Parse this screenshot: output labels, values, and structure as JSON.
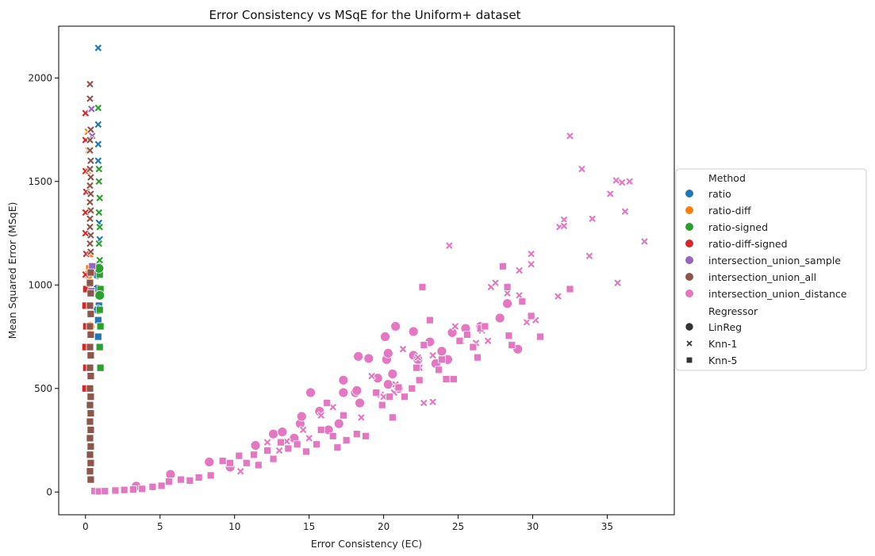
{
  "chart_data": {
    "type": "scatter",
    "title": "Error Consistency vs MSqE for the Uniform+ dataset",
    "xlabel": "Error Consistency (EC)",
    "ylabel": "Mean Squared Error (MSqE)",
    "xlim": [
      -1.8,
      39.5
    ],
    "ylim": [
      -110,
      2250
    ],
    "xticks": [
      0,
      5,
      10,
      15,
      20,
      25,
      30,
      35
    ],
    "yticks": [
      0,
      500,
      1000,
      1500,
      2000
    ],
    "grid": false,
    "legend_position": "center-right",
    "legend": {
      "hue_title": "Method",
      "style_title": "Regressor"
    },
    "methods": [
      {
        "name": "ratio",
        "color": "#1f77b4"
      },
      {
        "name": "ratio-diff",
        "color": "#ff7f0e"
      },
      {
        "name": "ratio-signed",
        "color": "#2ca02c"
      },
      {
        "name": "ratio-diff-signed",
        "color": "#d62728"
      },
      {
        "name": "intersection_union_sample",
        "color": "#9467bd"
      },
      {
        "name": "intersection_union_all",
        "color": "#8c564b"
      },
      {
        "name": "intersection_union_distance",
        "color": "#e377c2"
      }
    ],
    "regressors": [
      {
        "name": "LinReg",
        "marker": "circle"
      },
      {
        "name": "Knn-1",
        "marker": "x"
      },
      {
        "name": "Knn-5",
        "marker": "square"
      }
    ],
    "series": [
      {
        "method": "ratio",
        "regressor": "Knn-1",
        "points": [
          [
            0.85,
            2145
          ],
          [
            0.85,
            1775
          ],
          [
            0.85,
            1680
          ],
          [
            0.85,
            1600
          ],
          [
            0.9,
            1420
          ],
          [
            0.9,
            1300
          ],
          [
            0.95,
            1220
          ]
        ]
      },
      {
        "method": "ratio",
        "regressor": "Knn-5",
        "points": [
          [
            0.9,
            1090
          ],
          [
            0.9,
            980
          ],
          [
            0.9,
            900
          ],
          [
            0.85,
            830
          ],
          [
            0.85,
            750
          ]
        ]
      },
      {
        "method": "ratio",
        "regressor": "LinReg",
        "points": [
          [
            0.8,
            1050
          ],
          [
            0.8,
            980
          ],
          [
            0.85,
            880
          ]
        ]
      },
      {
        "method": "ratio-diff",
        "regressor": "Knn-5",
        "points": [
          [
            0.3,
            1150
          ],
          [
            0.25,
            1080
          ],
          [
            0.2,
            980
          ],
          [
            0.25,
            900
          ]
        ]
      },
      {
        "method": "ratio-diff",
        "regressor": "Knn-1",
        "points": [
          [
            0.15,
            1740
          ],
          [
            0.2,
            1650
          ],
          [
            0.15,
            1550
          ]
        ]
      },
      {
        "method": "ratio-diff",
        "regressor": "LinReg",
        "points": [
          [
            0.2,
            1050
          ],
          [
            0.3,
            800
          ]
        ]
      },
      {
        "method": "ratio-signed",
        "regressor": "Knn-1",
        "points": [
          [
            0.85,
            1855
          ],
          [
            0.9,
            1560
          ],
          [
            0.9,
            1500
          ],
          [
            0.95,
            1420
          ],
          [
            0.9,
            1350
          ],
          [
            0.95,
            1280
          ],
          [
            0.9,
            1200
          ],
          [
            0.95,
            1120
          ]
        ]
      },
      {
        "method": "ratio-signed",
        "regressor": "Knn-5",
        "points": [
          [
            0.95,
            1050
          ],
          [
            1.0,
            980
          ],
          [
            0.95,
            880
          ],
          [
            1.0,
            800
          ],
          [
            0.95,
            700
          ],
          [
            1.0,
            600
          ]
        ]
      },
      {
        "method": "ratio-signed",
        "regressor": "LinReg",
        "points": [
          [
            0.9,
            1080
          ],
          [
            0.95,
            950
          ]
        ]
      },
      {
        "method": "ratio-diff-signed",
        "regressor": "Knn-1",
        "points": [
          [
            0.0,
            1830
          ],
          [
            0.0,
            1700
          ],
          [
            0.0,
            1550
          ],
          [
            0.05,
            1450
          ],
          [
            0.0,
            1350
          ],
          [
            0.0,
            1250
          ],
          [
            0.05,
            1150
          ],
          [
            0.0,
            1050
          ]
        ]
      },
      {
        "method": "ratio-diff-signed",
        "regressor": "Knn-5",
        "points": [
          [
            0.05,
            980
          ],
          [
            0.0,
            900
          ],
          [
            0.05,
            800
          ],
          [
            0.0,
            700
          ],
          [
            0.05,
            600
          ],
          [
            0.0,
            500
          ]
        ]
      },
      {
        "method": "intersection_union_sample",
        "regressor": "Knn-1",
        "points": [
          [
            0.4,
            1850
          ],
          [
            0.45,
            1720
          ]
        ]
      },
      {
        "method": "intersection_union_sample",
        "regressor": "Knn-5",
        "points": [
          [
            0.45,
            1090
          ],
          [
            0.4,
            970
          ]
        ]
      },
      {
        "method": "intersection_union_all",
        "regressor": "Knn-1",
        "points": [
          [
            0.3,
            1970
          ],
          [
            0.3,
            1900
          ],
          [
            0.35,
            1750
          ],
          [
            0.3,
            1700
          ],
          [
            0.3,
            1650
          ],
          [
            0.35,
            1600
          ],
          [
            0.3,
            1560
          ],
          [
            0.35,
            1520
          ],
          [
            0.3,
            1480
          ],
          [
            0.35,
            1440
          ],
          [
            0.3,
            1400
          ],
          [
            0.35,
            1360
          ],
          [
            0.3,
            1320
          ],
          [
            0.3,
            1280
          ],
          [
            0.35,
            1240
          ],
          [
            0.3,
            1200
          ],
          [
            0.35,
            1160
          ]
        ]
      },
      {
        "method": "intersection_union_all",
        "regressor": "Knn-5",
        "points": [
          [
            0.35,
            1060
          ],
          [
            0.3,
            1010
          ],
          [
            0.35,
            960
          ],
          [
            0.3,
            900
          ],
          [
            0.35,
            860
          ],
          [
            0.3,
            800
          ],
          [
            0.35,
            760
          ],
          [
            0.3,
            700
          ],
          [
            0.35,
            660
          ],
          [
            0.3,
            600
          ],
          [
            0.35,
            560
          ],
          [
            0.3,
            500
          ],
          [
            0.35,
            460
          ],
          [
            0.3,
            420
          ],
          [
            0.35,
            380
          ],
          [
            0.3,
            340
          ],
          [
            0.35,
            300
          ],
          [
            0.3,
            260
          ],
          [
            0.35,
            220
          ],
          [
            0.3,
            180
          ],
          [
            0.35,
            140
          ],
          [
            0.3,
            100
          ],
          [
            0.35,
            60
          ]
        ]
      },
      {
        "method": "intersection_union_distance",
        "regressor": "LinReg",
        "points": [
          [
            3.4,
            28
          ],
          [
            5.7,
            85
          ],
          [
            8.3,
            145
          ],
          [
            9.7,
            120
          ],
          [
            11.4,
            225
          ],
          [
            12.6,
            280
          ],
          [
            13.2,
            290
          ],
          [
            14.0,
            260
          ],
          [
            14.4,
            330
          ],
          [
            14.5,
            365
          ],
          [
            15.1,
            480
          ],
          [
            15.7,
            390
          ],
          [
            16.3,
            300
          ],
          [
            17.0,
            330
          ],
          [
            17.3,
            540
          ],
          [
            17.3,
            480
          ],
          [
            18.1,
            480
          ],
          [
            18.2,
            490
          ],
          [
            18.4,
            430
          ],
          [
            18.3,
            655
          ],
          [
            19.0,
            645
          ],
          [
            19.6,
            550
          ],
          [
            20.1,
            750
          ],
          [
            20.2,
            640
          ],
          [
            20.3,
            670
          ],
          [
            20.3,
            520
          ],
          [
            20.6,
            570
          ],
          [
            20.8,
            800
          ],
          [
            21.0,
            500
          ],
          [
            22.0,
            775
          ],
          [
            22.0,
            660
          ],
          [
            22.3,
            640
          ],
          [
            23.1,
            725
          ],
          [
            23.5,
            620
          ],
          [
            23.9,
            680
          ],
          [
            24.3,
            640
          ],
          [
            24.6,
            770
          ],
          [
            25.5,
            790
          ],
          [
            26.5,
            800
          ],
          [
            27.8,
            840
          ],
          [
            28.3,
            910
          ],
          [
            29.0,
            690
          ]
        ]
      },
      {
        "method": "intersection_union_distance",
        "regressor": "Knn-1",
        "points": [
          [
            10.4,
            100
          ],
          [
            12.2,
            240
          ],
          [
            13.0,
            200
          ],
          [
            13.5,
            245
          ],
          [
            14.6,
            300
          ],
          [
            15.0,
            260
          ],
          [
            15.8,
            370
          ],
          [
            16.6,
            410
          ],
          [
            18.5,
            360
          ],
          [
            19.2,
            560
          ],
          [
            19.8,
            470
          ],
          [
            20.0,
            460
          ],
          [
            20.7,
            480
          ],
          [
            20.8,
            520
          ],
          [
            21.3,
            690
          ],
          [
            22.3,
            650
          ],
          [
            22.4,
            600
          ],
          [
            22.7,
            430
          ],
          [
            23.3,
            435
          ],
          [
            23.3,
            660
          ],
          [
            24.4,
            1190
          ],
          [
            24.8,
            800
          ],
          [
            25.2,
            730
          ],
          [
            26.2,
            720
          ],
          [
            26.6,
            780
          ],
          [
            27.0,
            730
          ],
          [
            27.2,
            990
          ],
          [
            27.5,
            1010
          ],
          [
            28.3,
            960
          ],
          [
            29.1,
            1070
          ],
          [
            29.1,
            950
          ],
          [
            29.3,
            920
          ],
          [
            29.6,
            820
          ],
          [
            29.9,
            1150
          ],
          [
            29.9,
            1100
          ],
          [
            30.2,
            830
          ],
          [
            31.7,
            945
          ],
          [
            31.8,
            1280
          ],
          [
            32.1,
            1315
          ],
          [
            32.1,
            1285
          ],
          [
            32.5,
            1720
          ],
          [
            33.3,
            1560
          ],
          [
            33.8,
            1140
          ],
          [
            34.0,
            1320
          ],
          [
            35.2,
            1440
          ],
          [
            35.6,
            1505
          ],
          [
            35.7,
            1010
          ],
          [
            36.0,
            1495
          ],
          [
            36.2,
            1355
          ],
          [
            36.5,
            1500
          ],
          [
            37.5,
            1210
          ]
        ]
      },
      {
        "method": "intersection_union_distance",
        "regressor": "Knn-5",
        "points": [
          [
            0.6,
            5
          ],
          [
            0.9,
            3
          ],
          [
            1.3,
            4
          ],
          [
            2.0,
            7
          ],
          [
            2.6,
            10
          ],
          [
            3.2,
            12
          ],
          [
            3.8,
            15
          ],
          [
            4.5,
            25
          ],
          [
            5.1,
            30
          ],
          [
            5.6,
            50
          ],
          [
            6.4,
            60
          ],
          [
            7.0,
            55
          ],
          [
            7.6,
            70
          ],
          [
            8.4,
            80
          ],
          [
            9.2,
            150
          ],
          [
            9.7,
            140
          ],
          [
            10.3,
            175
          ],
          [
            10.8,
            140
          ],
          [
            11.3,
            180
          ],
          [
            11.6,
            130
          ],
          [
            12.2,
            200
          ],
          [
            12.6,
            160
          ],
          [
            13.1,
            240
          ],
          [
            13.6,
            210
          ],
          [
            14.2,
            230
          ],
          [
            14.8,
            195
          ],
          [
            15.5,
            230
          ],
          [
            15.8,
            300
          ],
          [
            16.2,
            430
          ],
          [
            16.6,
            270
          ],
          [
            16.9,
            215
          ],
          [
            17.3,
            370
          ],
          [
            17.5,
            250
          ],
          [
            18.2,
            280
          ],
          [
            18.8,
            270
          ],
          [
            19.5,
            480
          ],
          [
            19.9,
            420
          ],
          [
            20.4,
            460
          ],
          [
            20.6,
            360
          ],
          [
            21.0,
            505
          ],
          [
            21.4,
            460
          ],
          [
            21.9,
            500
          ],
          [
            22.2,
            600
          ],
          [
            22.4,
            540
          ],
          [
            22.6,
            990
          ],
          [
            22.7,
            710
          ],
          [
            23.1,
            830
          ],
          [
            23.7,
            590
          ],
          [
            23.9,
            640
          ],
          [
            24.2,
            545
          ],
          [
            24.7,
            545
          ],
          [
            25.1,
            730
          ],
          [
            25.6,
            760
          ],
          [
            26.0,
            700
          ],
          [
            26.3,
            650
          ],
          [
            26.5,
            790
          ],
          [
            26.8,
            800
          ],
          [
            28.0,
            1090
          ],
          [
            28.3,
            990
          ],
          [
            28.4,
            755
          ],
          [
            28.6,
            710
          ],
          [
            29.3,
            920
          ],
          [
            29.9,
            850
          ],
          [
            30.5,
            750
          ],
          [
            32.5,
            980
          ]
        ]
      }
    ]
  }
}
